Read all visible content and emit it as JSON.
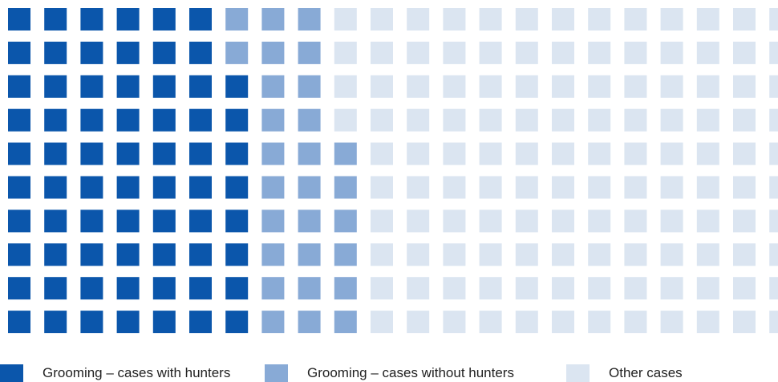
{
  "chart_data": {
    "type": "waffle",
    "grid": {
      "columns": 22,
      "rows": 10
    },
    "colors": {
      "with_hunters": "#0b56ab",
      "without_hunters": "#88aad6",
      "other": "#dbe5f1"
    },
    "column_fill_counts": {
      "with_hunters": [
        10,
        10,
        10,
        10,
        10,
        10,
        8
      ],
      "without_hunters": [
        2,
        10,
        10,
        6
      ]
    },
    "legend": [
      {
        "key": "with_hunters",
        "label": "Grooming – cases with hunters"
      },
      {
        "key": "without_hunters",
        "label": "Grooming – cases without hunters"
      },
      {
        "key": "other",
        "label": "Other cases"
      }
    ],
    "series": [
      {
        "name": "Grooming – cases with hunters",
        "value": 68
      },
      {
        "name": "Grooming – cases without hunters",
        "value": 28
      },
      {
        "name": "Other cases",
        "value": 124
      }
    ]
  }
}
